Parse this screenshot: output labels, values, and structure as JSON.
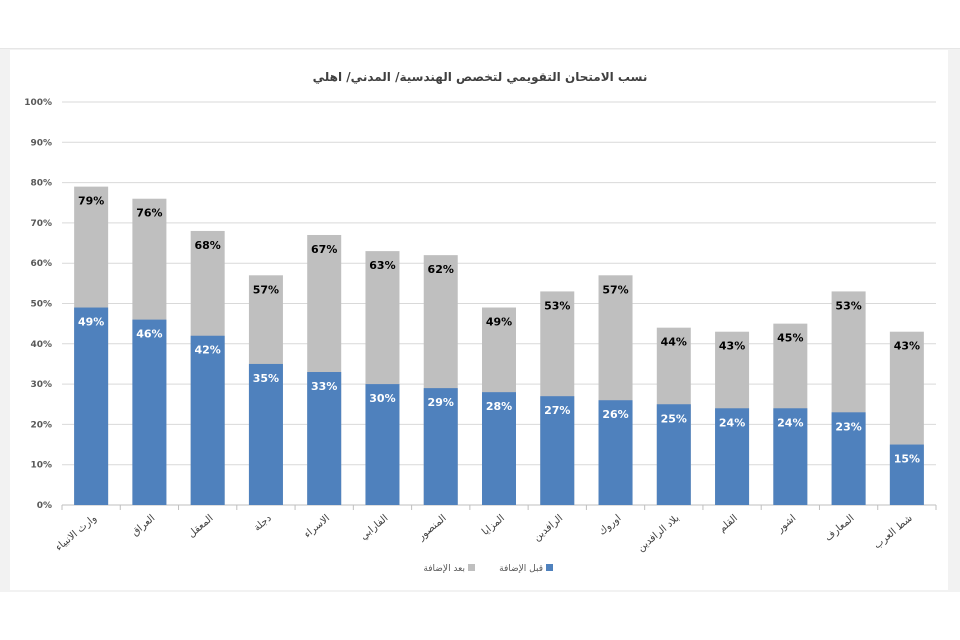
{
  "chart_data": {
    "type": "bar",
    "title": "نسب الامتحان التقويمي لتخصص الهندسية/ المدني/ اهلي",
    "categories": [
      "وارث الانبياء",
      "العراق",
      "المعقل",
      "دجلة",
      "الاسراء",
      "الفارابي",
      "المنصور",
      "المزايا",
      "الرافدين",
      "اوروك",
      "بلاد الرافدين",
      "القلم",
      "اشور",
      "المعارف",
      "شط العرب"
    ],
    "series": [
      {
        "name": "قبل الإضافة",
        "color": "#4f81bd",
        "values": [
          49,
          46,
          42,
          35,
          33,
          30,
          29,
          28,
          27,
          26,
          25,
          24,
          24,
          23,
          15
        ]
      },
      {
        "name": "بعد الإضافة",
        "color": "#bfbfbf",
        "values": [
          79,
          76,
          68,
          57,
          67,
          63,
          62,
          49,
          53,
          57,
          44,
          43,
          45,
          53,
          43
        ]
      }
    ],
    "ylim": [
      0,
      100
    ],
    "yticks": [
      "0%",
      "10%",
      "20%",
      "30%",
      "40%",
      "50%",
      "60%",
      "70%",
      "80%",
      "90%",
      "100%"
    ],
    "grid": true,
    "legend": "bottom",
    "bar_mode": "overlapped",
    "data_labels": true
  }
}
